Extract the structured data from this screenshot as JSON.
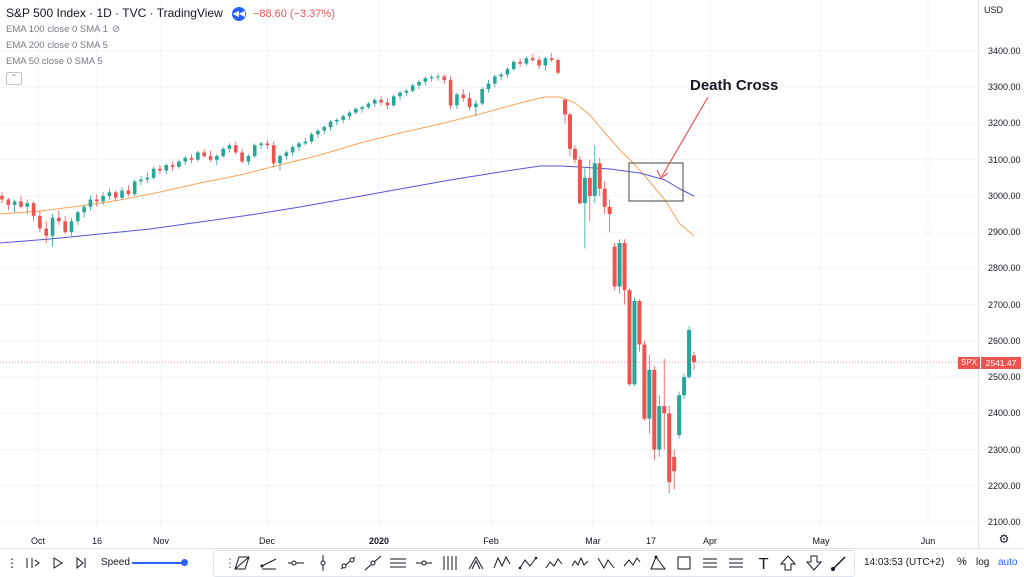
{
  "legend": {
    "title": "S&P 500 Index · 1D · TVC · TradingView",
    "change": "−88.60 (−3.37%)",
    "indicators": [
      "EMA 100 close 0 SMA 1",
      "EMA 200 close 0 SMA 5",
      "EMA 50 close 0 SMA 5"
    ]
  },
  "price_scale": {
    "currency": "USD",
    "ticks": [
      "3400.00",
      "3300.00",
      "3200.00",
      "3100.00",
      "3000.00",
      "2900.00",
      "2800.00",
      "2700.00",
      "2600.00",
      "2500.00",
      "2400.00",
      "2300.00",
      "2200.00",
      "2100.00"
    ]
  },
  "time_axis": {
    "labels": [
      {
        "text": "Oct",
        "bold": false
      },
      {
        "text": "16",
        "bold": false
      },
      {
        "text": "Nov",
        "bold": false
      },
      {
        "text": "Dec",
        "bold": false
      },
      {
        "text": "2020",
        "bold": true
      },
      {
        "text": "Feb",
        "bold": false
      },
      {
        "text": "Mar",
        "bold": false
      },
      {
        "text": "17",
        "bold": false
      },
      {
        "text": "Apr",
        "bold": false
      },
      {
        "text": "May",
        "bold": false
      },
      {
        "text": "Jun",
        "bold": false
      }
    ]
  },
  "current_price": {
    "symbol": "SPX",
    "value": "2541.47",
    "number": 2541.47
  },
  "annotation": {
    "text": "Death Cross"
  },
  "toolbar": {
    "speed_label": "Speed",
    "time": "14:03:53 (UTC+2)",
    "percent": "%",
    "log": "log",
    "auto": "auto"
  },
  "colors": {
    "up": "#26a69a",
    "down": "#ef5350",
    "ema50": "#f7a35c",
    "ema200": "#5555d6",
    "accent": "#2962ff"
  },
  "chart_data": {
    "type": "candlestick",
    "ylim": [
      2080,
      3460
    ],
    "candles": [
      [
        3000,
        3010,
        2980,
        2990
      ],
      [
        2990,
        2995,
        2960,
        2975
      ],
      [
        2975,
        2990,
        2955,
        2985
      ],
      [
        2985,
        3000,
        2965,
        2970
      ],
      [
        2970,
        2990,
        2950,
        2980
      ],
      [
        2980,
        2985,
        2930,
        2945
      ],
      [
        2945,
        2960,
        2900,
        2910
      ],
      [
        2910,
        2930,
        2870,
        2890
      ],
      [
        2890,
        2950,
        2860,
        2940
      ],
      [
        2940,
        2960,
        2920,
        2930
      ],
      [
        2930,
        2945,
        2895,
        2900
      ],
      [
        2900,
        2940,
        2890,
        2930
      ],
      [
        2930,
        2960,
        2920,
        2955
      ],
      [
        2955,
        2975,
        2940,
        2970
      ],
      [
        2970,
        3000,
        2960,
        2990
      ],
      [
        2990,
        3005,
        2970,
        2985
      ],
      [
        2985,
        3010,
        2975,
        3000
      ],
      [
        3000,
        3020,
        2990,
        3010
      ],
      [
        3010,
        3015,
        2985,
        2995
      ],
      [
        2995,
        3025,
        2990,
        3015
      ],
      [
        3015,
        3030,
        3000,
        3005
      ],
      [
        3005,
        3045,
        3000,
        3040
      ],
      [
        3040,
        3055,
        3030,
        3045
      ],
      [
        3045,
        3065,
        3035,
        3050
      ],
      [
        3050,
        3080,
        3045,
        3075
      ],
      [
        3075,
        3085,
        3060,
        3070
      ],
      [
        3070,
        3090,
        3060,
        3085
      ],
      [
        3085,
        3095,
        3070,
        3080
      ],
      [
        3080,
        3100,
        3075,
        3095
      ],
      [
        3095,
        3110,
        3085,
        3105
      ],
      [
        3105,
        3115,
        3090,
        3100
      ],
      [
        3100,
        3125,
        3095,
        3120
      ],
      [
        3120,
        3130,
        3105,
        3110
      ],
      [
        3110,
        3125,
        3095,
        3100
      ],
      [
        3100,
        3115,
        3085,
        3110
      ],
      [
        3110,
        3135,
        3105,
        3130
      ],
      [
        3130,
        3145,
        3120,
        3140
      ],
      [
        3140,
        3150,
        3115,
        3120
      ],
      [
        3120,
        3130,
        3090,
        3095
      ],
      [
        3095,
        3115,
        3085,
        3110
      ],
      [
        3110,
        3145,
        3105,
        3140
      ],
      [
        3140,
        3150,
        3130,
        3145
      ],
      [
        3145,
        3155,
        3130,
        3140
      ],
      [
        3140,
        3150,
        3080,
        3090
      ],
      [
        3090,
        3115,
        3070,
        3110
      ],
      [
        3110,
        3125,
        3100,
        3120
      ],
      [
        3120,
        3140,
        3110,
        3135
      ],
      [
        3135,
        3150,
        3125,
        3145
      ],
      [
        3145,
        3160,
        3140,
        3150
      ],
      [
        3150,
        3175,
        3145,
        3170
      ],
      [
        3170,
        3185,
        3160,
        3180
      ],
      [
        3180,
        3195,
        3170,
        3190
      ],
      [
        3190,
        3210,
        3180,
        3205
      ],
      [
        3205,
        3215,
        3195,
        3210
      ],
      [
        3210,
        3225,
        3200,
        3220
      ],
      [
        3220,
        3235,
        3210,
        3230
      ],
      [
        3230,
        3245,
        3225,
        3240
      ],
      [
        3240,
        3250,
        3230,
        3245
      ],
      [
        3245,
        3260,
        3240,
        3255
      ],
      [
        3255,
        3270,
        3245,
        3265
      ],
      [
        3265,
        3275,
        3250,
        3258
      ],
      [
        3258,
        3270,
        3240,
        3250
      ],
      [
        3250,
        3280,
        3245,
        3275
      ],
      [
        3275,
        3290,
        3265,
        3285
      ],
      [
        3285,
        3295,
        3275,
        3290
      ],
      [
        3290,
        3310,
        3285,
        3305
      ],
      [
        3305,
        3320,
        3295,
        3315
      ],
      [
        3315,
        3330,
        3305,
        3325
      ],
      [
        3325,
        3335,
        3315,
        3328
      ],
      [
        3328,
        3338,
        3318,
        3330
      ],
      [
        3330,
        3335,
        3310,
        3320
      ],
      [
        3320,
        3330,
        3240,
        3250
      ],
      [
        3250,
        3285,
        3240,
        3280
      ],
      [
        3280,
        3295,
        3260,
        3270
      ],
      [
        3270,
        3285,
        3235,
        3245
      ],
      [
        3245,
        3265,
        3220,
        3255
      ],
      [
        3255,
        3300,
        3250,
        3295
      ],
      [
        3295,
        3320,
        3285,
        3310
      ],
      [
        3310,
        3335,
        3300,
        3330
      ],
      [
        3330,
        3340,
        3320,
        3335
      ],
      [
        3335,
        3355,
        3325,
        3350
      ],
      [
        3350,
        3375,
        3345,
        3370
      ],
      [
        3370,
        3380,
        3355,
        3365
      ],
      [
        3365,
        3385,
        3360,
        3380
      ],
      [
        3380,
        3390,
        3370,
        3375
      ],
      [
        3375,
        3385,
        3350,
        3360
      ],
      [
        3360,
        3385,
        3345,
        3380
      ],
      [
        3380,
        3395,
        3370,
        3375
      ],
      [
        3375,
        3380,
        3335,
        3340
      ],
      [
        3265,
        3270,
        3200,
        3225
      ],
      [
        3225,
        3230,
        3110,
        3130
      ],
      [
        3130,
        3140,
        3090,
        3100
      ],
      [
        3100,
        3110,
        2975,
        2980
      ],
      [
        2980,
        3080,
        2855,
        3050
      ],
      [
        3050,
        3100,
        2930,
        3000
      ],
      [
        3000,
        3140,
        2980,
        3090
      ],
      [
        3090,
        3105,
        3000,
        3020
      ],
      [
        3020,
        3040,
        2950,
        2970
      ],
      [
        2970,
        2990,
        2900,
        2950
      ],
      [
        2860,
        2870,
        2740,
        2750
      ],
      [
        2750,
        2880,
        2730,
        2870
      ],
      [
        2870,
        2880,
        2700,
        2740
      ],
      [
        2740,
        2745,
        2475,
        2480
      ],
      [
        2480,
        2720,
        2475,
        2710
      ],
      [
        2710,
        2715,
        2570,
        2590
      ],
      [
        2590,
        2600,
        2380,
        2385
      ],
      [
        2385,
        2560,
        2345,
        2520
      ],
      [
        2520,
        2530,
        2270,
        2300
      ],
      [
        2300,
        2450,
        2280,
        2420
      ],
      [
        2420,
        2550,
        2300,
        2400
      ],
      [
        2400,
        2420,
        2180,
        2210
      ],
      [
        2280,
        2300,
        2190,
        2240
      ],
      [
        2340,
        2460,
        2330,
        2450
      ],
      [
        2450,
        2510,
        2440,
        2500
      ],
      [
        2500,
        2640,
        2495,
        2630
      ],
      [
        2560,
        2570,
        2520,
        2541
      ]
    ]
  }
}
